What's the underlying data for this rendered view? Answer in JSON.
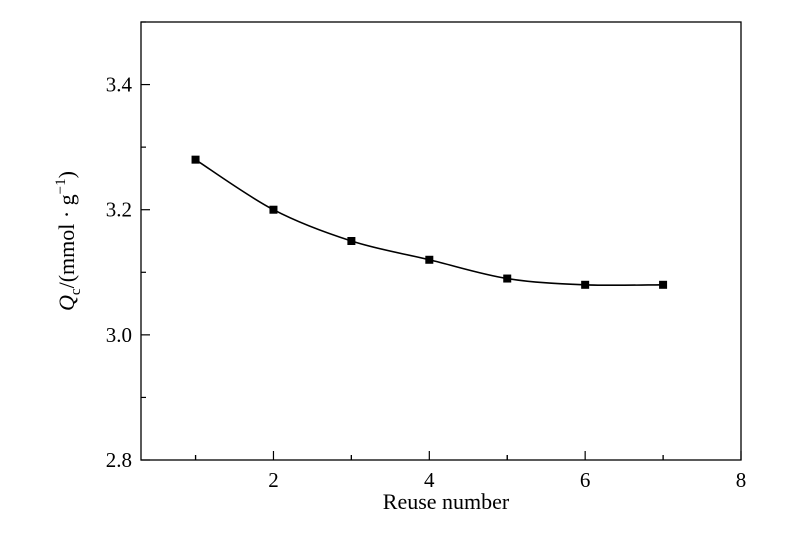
{
  "chart_data": {
    "type": "line",
    "title": "",
    "xlabel": "Reuse number",
    "ylabel": {
      "symbol": "Q",
      "subscript": "c",
      "unit_prefix": "/(mmol · g",
      "unit_exponent": "−1",
      "unit_suffix": ")"
    },
    "xlim": [
      0.3,
      8
    ],
    "ylim": [
      2.8,
      3.5
    ],
    "xticks": [
      2,
      4,
      6,
      8
    ],
    "xtick_labels": [
      "2",
      "4",
      "6",
      "8"
    ],
    "yticks": [
      2.8,
      3.0,
      3.2,
      3.4
    ],
    "ytick_labels": [
      "2.8",
      "3.0",
      "3.2",
      "3.4"
    ],
    "grid": false,
    "marker": "square",
    "series": [
      {
        "x": [
          1,
          2,
          3,
          4,
          5,
          6,
          7
        ],
        "values": [
          3.28,
          3.2,
          3.15,
          3.12,
          3.09,
          3.08,
          3.08
        ]
      }
    ]
  }
}
